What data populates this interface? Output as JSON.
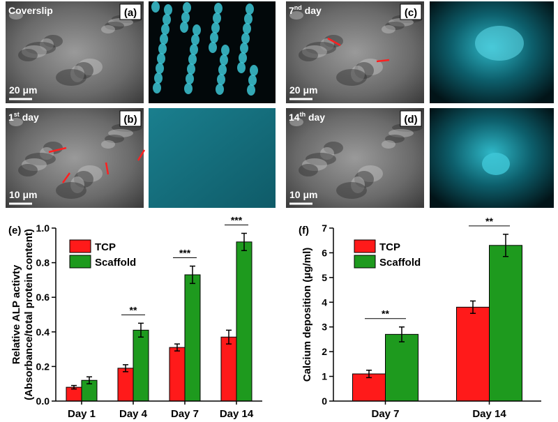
{
  "panels": [
    {
      "label": "(a)",
      "caption": {
        "text": "Coverslip"
      },
      "scale": "20 μm"
    },
    {
      "label": "(b)",
      "caption": {
        "num": "1",
        "sup": "st",
        "text": " day"
      },
      "scale": "10 μm"
    },
    {
      "label": "(c)",
      "caption": {
        "num": "7",
        "sup": "nd",
        "text": " day"
      },
      "scale": "20 μm"
    },
    {
      "label": "(d)",
      "caption": {
        "num": "14",
        "sup": "th",
        "text": " day"
      },
      "scale": "10 μm"
    }
  ],
  "chart_data": [
    {
      "type": "bar",
      "panel_label": "(e)",
      "ylabel": [
        "Relative ALP activty",
        "(Absorbance/total protein content)"
      ],
      "categories": [
        "Day 1",
        "Day 4",
        "Day 7",
        "Day 14"
      ],
      "series": [
        {
          "name": "TCP",
          "color": "#ff1a1a",
          "values": [
            0.08,
            0.19,
            0.31,
            0.37
          ],
          "errors": [
            0.01,
            0.02,
            0.02,
            0.04
          ]
        },
        {
          "name": "Scaffold",
          "color": "#1e9a1e",
          "values": [
            0.12,
            0.41,
            0.73,
            0.92
          ],
          "errors": [
            0.02,
            0.04,
            0.05,
            0.05
          ]
        }
      ],
      "significance": [
        null,
        "**",
        "***",
        "***"
      ],
      "ylim": [
        0,
        1
      ],
      "yticks": [
        {
          "value": 0,
          "label": "0.0"
        },
        0.2,
        0.4,
        0.6,
        0.8,
        {
          "value": 1,
          "label": "1.0"
        }
      ],
      "legend": "upper left"
    },
    {
      "type": "bar",
      "panel_label": "(f)",
      "ylabel": [
        "Calcium deposition (μg/ml)"
      ],
      "categories": [
        "Day 7",
        "Day 14"
      ],
      "series": [
        {
          "name": "TCP",
          "color": "#ff1a1a",
          "values": [
            1.1,
            3.8
          ],
          "errors": [
            0.15,
            0.25
          ]
        },
        {
          "name": "Scaffold",
          "color": "#1e9a1e",
          "values": [
            2.7,
            6.3
          ],
          "errors": [
            0.3,
            0.45
          ]
        }
      ],
      "significance": [
        "**",
        "**"
      ],
      "ylim": [
        0,
        7
      ],
      "yticks": [
        0,
        1,
        2,
        3,
        4,
        5,
        6,
        7
      ],
      "legend": "upper left"
    }
  ]
}
